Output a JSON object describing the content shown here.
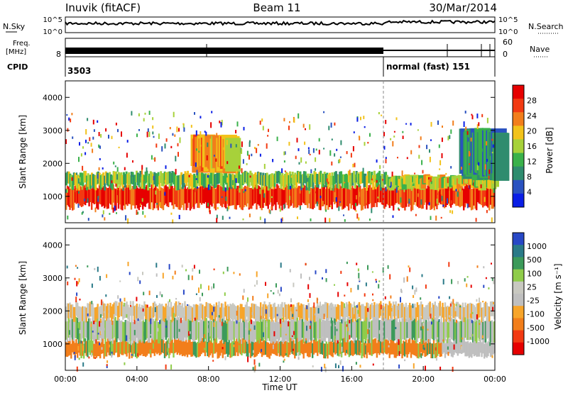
{
  "header": {
    "station": "Inuvik (fitACF)",
    "beam": "Beam 11",
    "date": "30/Mar/2014"
  },
  "panels": {
    "nsky_label": "N.Sky",
    "nsearch_label": "N.Search",
    "nsky_ticks": [
      "10^5",
      "10^0"
    ],
    "nsearch_ticks": [
      "10^5",
      "10^0"
    ],
    "freq_label_1": "Freq.",
    "freq_label_2": "[MHz]",
    "freq_tick": "8",
    "nave_label": "Nave",
    "nave_ticks": [
      "60",
      "0"
    ],
    "cpid_label": "CPID",
    "cpid_1": "3503",
    "cpid_2": "normal (fast) 151"
  },
  "colors": {
    "power": [
      "#0a1ee6",
      "#2a52c0",
      "#2f8c6e",
      "#3ab14b",
      "#a7d13a",
      "#f2c21a",
      "#f27e1b",
      "#f23a12",
      "#e60000"
    ],
    "velocity": [
      "#e60000",
      "#f23a12",
      "#f27e1b",
      "#f7a52a",
      "#bfbfbf",
      "#c8c8c0",
      "#8fcc4a",
      "#3c9a5a",
      "#2a7a88",
      "#2848c6"
    ],
    "background": "#ffffff"
  },
  "chart_data": [
    {
      "type": "heatmap",
      "name": "power",
      "ylabel": "Slant Range [km]",
      "colorbar_label": "Power [dB]",
      "colorbar_ticks": [
        "28",
        "24",
        "20",
        "16",
        "12",
        "8",
        "4"
      ],
      "y_ticks": [
        "4000",
        "3000",
        "2000",
        "1000"
      ],
      "ylim": [
        200,
        4500
      ],
      "xlim": [
        0,
        24
      ],
      "bands": [
        {
          "t0": 0,
          "t1": 24,
          "r0": 700,
          "r1": 1300,
          "level": 28
        },
        {
          "t0": 0,
          "t1": 18,
          "r0": 1300,
          "r1": 1700,
          "level": 14
        },
        {
          "t0": 18,
          "t1": 24,
          "r0": 1300,
          "r1": 1600,
          "level": 18
        },
        {
          "t0": 7,
          "t1": 9,
          "r0": 1800,
          "r1": 2800,
          "level": 22
        },
        {
          "t0": 22,
          "t1": 24,
          "r0": 1600,
          "r1": 3000,
          "level": 8
        }
      ]
    },
    {
      "type": "heatmap",
      "name": "velocity",
      "ylabel": "Slant Range [km]",
      "colorbar_label": "Velocity [m s⁻¹]",
      "colorbar_ticks": [
        "1000",
        "500",
        "100",
        "25",
        "-25",
        "-100",
        "-500",
        "-1000"
      ],
      "y_ticks": [
        "4000",
        "3000",
        "2000",
        "1000"
      ],
      "ylim": [
        200,
        4500
      ],
      "xlim": [
        0,
        24
      ],
      "x_ticks": [
        "00:00",
        "04:00",
        "08:00",
        "12:00",
        "16:00",
        "20:00",
        "00:00"
      ],
      "xlabel": "Time UT"
    }
  ]
}
